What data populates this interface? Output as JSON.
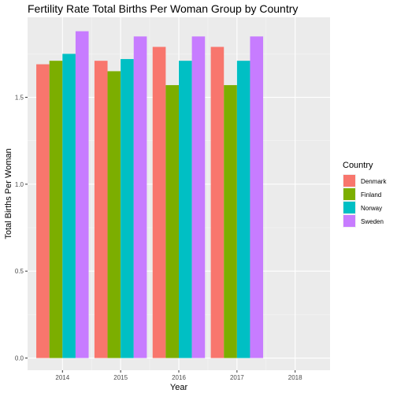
{
  "chart_data": {
    "type": "bar",
    "title": "Fertility Rate Total Births Per Woman Group by Country",
    "xlabel": "Year",
    "ylabel": "Total Births Per Woman",
    "categories": [
      "2014",
      "2015",
      "2016",
      "2017",
      "2018"
    ],
    "ylim": [
      -0.07,
      1.96
    ],
    "yticks": [
      0.0,
      0.5,
      1.0,
      1.5
    ],
    "ytick_labels": [
      "0.0",
      "0.5",
      "1.0",
      "1.5"
    ],
    "grid": true,
    "legend_title": "Country",
    "legend_position": "right",
    "series": [
      {
        "name": "Denmark",
        "color": "#F8766D",
        "values": [
          1.69,
          1.71,
          1.79,
          1.79,
          null
        ]
      },
      {
        "name": "Finland",
        "color": "#7CAE00",
        "values": [
          1.71,
          1.65,
          1.57,
          1.57,
          null
        ]
      },
      {
        "name": "Norway",
        "color": "#00BFC4",
        "values": [
          1.75,
          1.72,
          1.71,
          1.71,
          null
        ]
      },
      {
        "name": "Sweden",
        "color": "#C77CFF",
        "values": [
          1.88,
          1.85,
          1.85,
          1.85,
          null
        ]
      }
    ]
  }
}
